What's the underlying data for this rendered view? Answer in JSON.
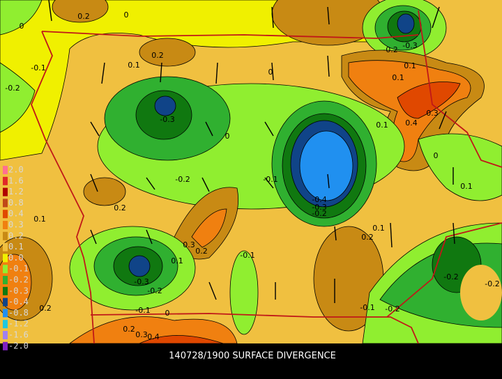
{
  "title": "140728/1900 SURFACE DIVERGENCE",
  "legend": [
    {
      "label": "2.0",
      "color": "#ff7090"
    },
    {
      "label": "1.6",
      "color": "#e02828"
    },
    {
      "label": "1.2",
      "color": "#b00000"
    },
    {
      "label": "0.8",
      "color": "#c04818"
    },
    {
      "label": "0.4",
      "color": "#e04800"
    },
    {
      "label": "0.3",
      "color": "#f08010"
    },
    {
      "label": "0.2",
      "color": "#c88a14"
    },
    {
      "label": "0.1",
      "color": "#f0c040"
    },
    {
      "label": "0.0",
      "color": "#f0f000"
    },
    {
      "label": "-0.1",
      "color": "#90ee30"
    },
    {
      "label": "-0.2",
      "color": "#30b030"
    },
    {
      "label": "-0.3",
      "color": "#107810"
    },
    {
      "label": "-0.4",
      "color": "#104488"
    },
    {
      "label": "-0.8",
      "color": "#2090f0"
    },
    {
      "label": "-1.2",
      "color": "#20c8e0"
    },
    {
      "label": "-1.6",
      "color": "#a080f0"
    },
    {
      "label": "-2.0",
      "color": "#8020c0"
    }
  ],
  "contour_labels": [
    "0.2",
    "0",
    "0",
    "-0.1",
    "-0.2",
    "0.2",
    "0.1",
    "-0.3",
    "0",
    "-0.2",
    "0.2",
    "0.1",
    "-0.1",
    "-0.4",
    "-0.3",
    "-0.2",
    "0.3",
    "0.2",
    "0.1",
    "-0.1",
    "-0.3",
    "-0.2",
    "-0.1",
    "0",
    "0.2",
    "0.2",
    "0.3",
    "0.4",
    "0.1",
    "0.2",
    "0.1",
    "0",
    "0.4",
    "0.3",
    "0.1",
    "0.1",
    "0.1",
    "-0.2",
    "-0.3",
    "0",
    "-0.2",
    "-0.2",
    "-0.1",
    "-0.2"
  ]
}
